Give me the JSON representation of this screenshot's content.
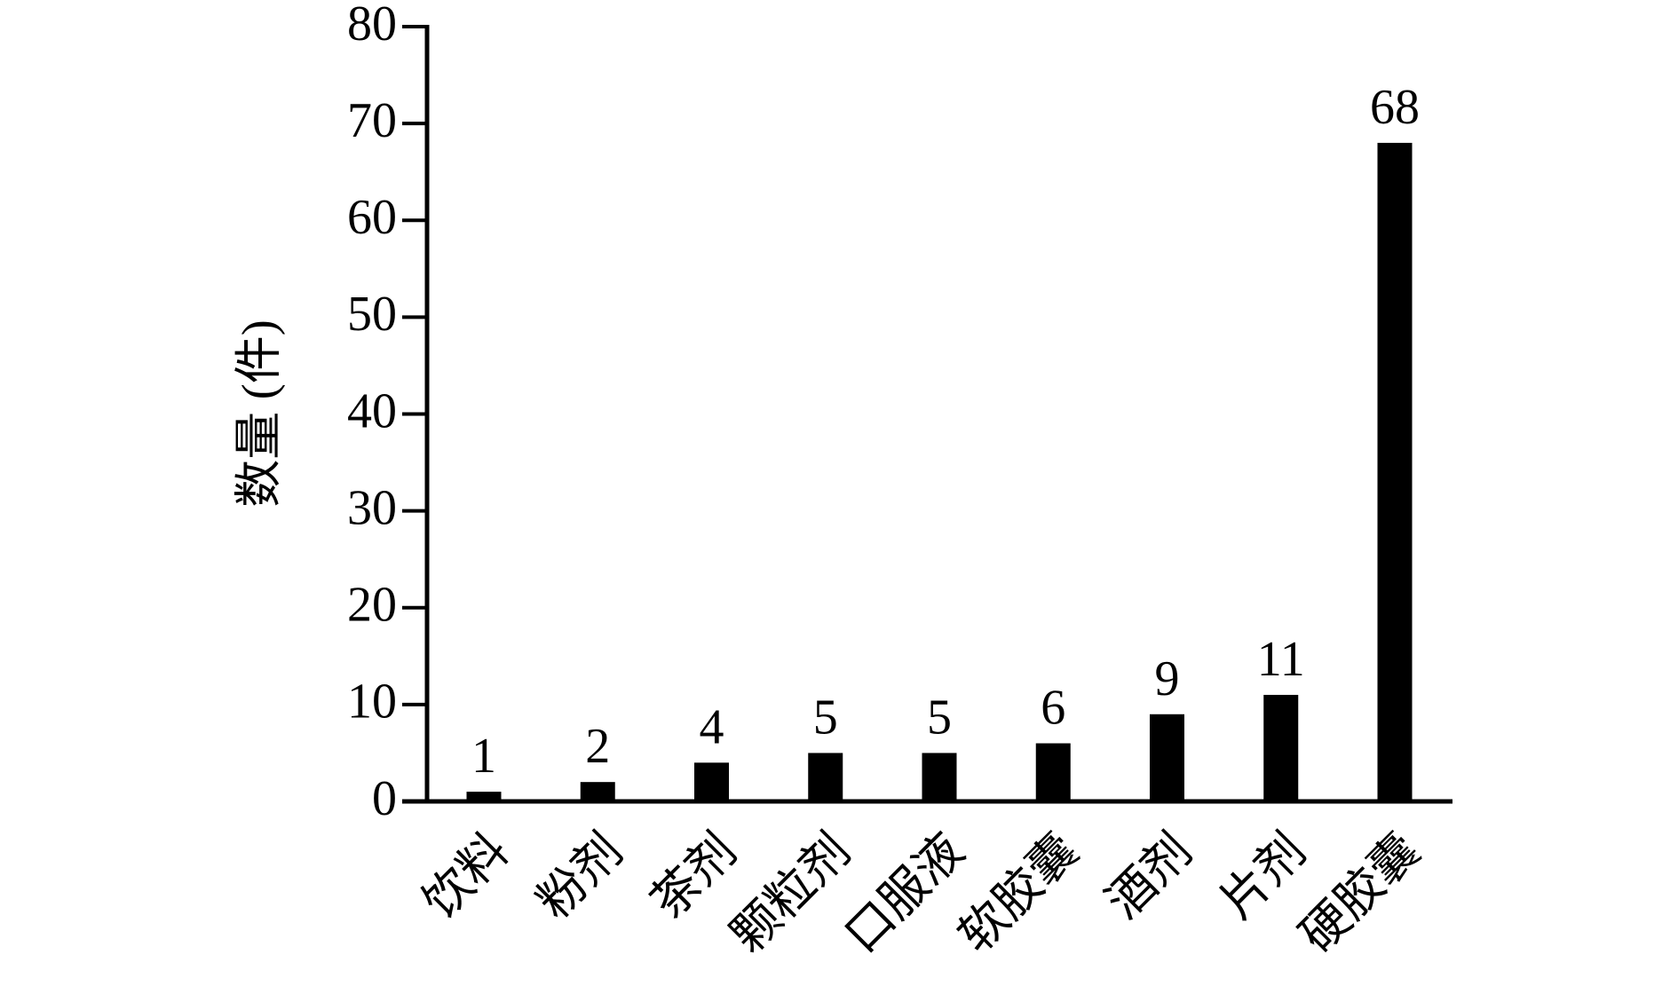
{
  "chart_data": {
    "type": "bar",
    "y_label": "数量 (件)",
    "categories": [
      "饮料",
      "粉剂",
      "茶剂",
      "颗粒剂",
      "口服液",
      "软胶囊",
      "酒剂",
      "片剂",
      "硬胶囊"
    ],
    "values": [
      1,
      2,
      4,
      5,
      5,
      6,
      9,
      11,
      68
    ],
    "color": "#000000",
    "ylim": [
      0,
      80
    ],
    "yticks": [
      0,
      10,
      20,
      30,
      40,
      50,
      60,
      70,
      80
    ],
    "grid": false
  }
}
